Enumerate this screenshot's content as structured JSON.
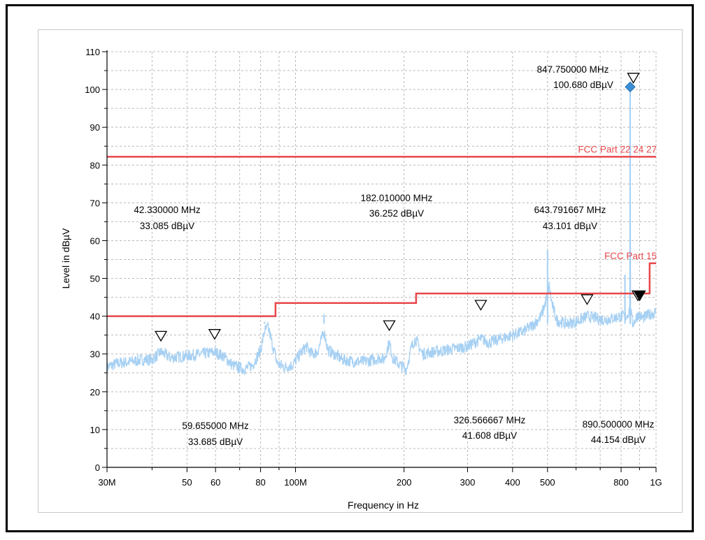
{
  "chart_data": {
    "type": "line",
    "xlabel": "Frequency in Hz",
    "ylabel": "Level in dBµV",
    "x_scale": "log",
    "xlim_hz": [
      30000000,
      1000000000
    ],
    "ylim": [
      0,
      110
    ],
    "grid": true,
    "y_ticks": [
      0,
      10,
      20,
      30,
      40,
      50,
      60,
      70,
      80,
      90,
      100,
      110
    ],
    "y_tick_labels": [
      "0",
      "10",
      "20",
      "30",
      "40",
      "50",
      "60",
      "70",
      "80",
      "90",
      "100",
      "110"
    ],
    "x_ticks": [
      {
        "hz": 30000000,
        "label": "30M"
      },
      {
        "hz": 50000000,
        "label": "50"
      },
      {
        "hz": 60000000,
        "label": "60"
      },
      {
        "hz": 80000000,
        "label": "80"
      },
      {
        "hz": 100000000,
        "label": "100M"
      },
      {
        "hz": 200000000,
        "label": "200"
      },
      {
        "hz": 300000000,
        "label": "300"
      },
      {
        "hz": 400000000,
        "label": "400"
      },
      {
        "hz": 500000000,
        "label": "500"
      },
      {
        "hz": 800000000,
        "label": "800"
      },
      {
        "hz": 1000000000,
        "label": "1G"
      }
    ],
    "x_minor_ticks_hz": [
      40000000,
      70000000,
      90000000,
      600000000,
      700000000,
      900000000
    ],
    "spectrum": {
      "color": "#a6d0f3",
      "points": [
        [
          30000000,
          26.5
        ],
        [
          32000000,
          27.5
        ],
        [
          35000000,
          28
        ],
        [
          38000000,
          28.5
        ],
        [
          40000000,
          28.5
        ],
        [
          42330000,
          30.5
        ],
        [
          45000000,
          29
        ],
        [
          50000000,
          29.5
        ],
        [
          55000000,
          30
        ],
        [
          59655000,
          30.5
        ],
        [
          63000000,
          29.5
        ],
        [
          67000000,
          27
        ],
        [
          72000000,
          26
        ],
        [
          76000000,
          27
        ],
        [
          80000000,
          31
        ],
        [
          82000000,
          36
        ],
        [
          84000000,
          37
        ],
        [
          86000000,
          33
        ],
        [
          89000000,
          27.5
        ],
        [
          93000000,
          26.5
        ],
        [
          98000000,
          27
        ],
        [
          103000000,
          30
        ],
        [
          107000000,
          32
        ],
        [
          111000000,
          30
        ],
        [
          115000000,
          30.5
        ],
        [
          120000000,
          36
        ],
        [
          123000000,
          31
        ],
        [
          128000000,
          30
        ],
        [
          135000000,
          28.5
        ],
        [
          145000000,
          28
        ],
        [
          155000000,
          28
        ],
        [
          165000000,
          28.5
        ],
        [
          172000000,
          29
        ],
        [
          176000000,
          28.5
        ],
        [
          182010000,
          33
        ],
        [
          186000000,
          29
        ],
        [
          195000000,
          27
        ],
        [
          203000000,
          26
        ],
        [
          210000000,
          32
        ],
        [
          215000000,
          34
        ],
        [
          225000000,
          30
        ],
        [
          240000000,
          30.5
        ],
        [
          260000000,
          31
        ],
        [
          280000000,
          31.5
        ],
        [
          300000000,
          32
        ],
        [
          326566667,
          34
        ],
        [
          345000000,
          33
        ],
        [
          370000000,
          34
        ],
        [
          400000000,
          35
        ],
        [
          430000000,
          36
        ],
        [
          460000000,
          38
        ],
        [
          480000000,
          40
        ],
        [
          495000000,
          44
        ],
        [
          505000000,
          48
        ],
        [
          515000000,
          43
        ],
        [
          530000000,
          39
        ],
        [
          560000000,
          38
        ],
        [
          600000000,
          38.5
        ],
        [
          643791667,
          40
        ],
        [
          680000000,
          39.5
        ],
        [
          720000000,
          39
        ],
        [
          760000000,
          39.5
        ],
        [
          800000000,
          40
        ],
        [
          830000000,
          40
        ],
        [
          845000000,
          42
        ],
        [
          847750000,
          100.68
        ],
        [
          850000000,
          42
        ],
        [
          860000000,
          38
        ],
        [
          875000000,
          39
        ],
        [
          890500000,
          40.5
        ],
        [
          920000000,
          39.5
        ],
        [
          960000000,
          40.5
        ],
        [
          1000000000,
          41
        ]
      ],
      "spikes": [
        [
          847750000,
          100.68
        ],
        [
          847750000,
          100.68
        ],
        [
          820000000,
          51
        ],
        [
          500000000,
          57.5
        ],
        [
          120000000,
          40.5
        ],
        [
          210000000,
          38
        ],
        [
          82000000,
          38.5
        ]
      ]
    },
    "limit_lines": [
      {
        "name": "FCC Part 22 24 27",
        "color": "#e8474b",
        "points": [
          [
            30000000,
            82.2
          ],
          [
            1000000000,
            82.2
          ]
        ]
      },
      {
        "name": "FCC Part 15",
        "color": "#e8474b",
        "points": [
          [
            30000000,
            40
          ],
          [
            88000000,
            40
          ],
          [
            88000000,
            43.5
          ],
          [
            216000000,
            43.5
          ],
          [
            216000000,
            46
          ],
          [
            960000000,
            46
          ],
          [
            960000000,
            54
          ],
          [
            1000000000,
            54
          ]
        ]
      }
    ],
    "markers": [
      {
        "freq_hz": 42330000,
        "level": 34.5,
        "filled": false
      },
      {
        "freq_hz": 59655000,
        "level": 35.0,
        "filled": false
      },
      {
        "freq_hz": 182010000,
        "level": 37.3,
        "filled": false
      },
      {
        "freq_hz": 326566667,
        "level": 42.7,
        "filled": false
      },
      {
        "freq_hz": 643791667,
        "level": 44.2,
        "filled": false
      },
      {
        "freq_hz": 890500000,
        "level": 45.2,
        "filled": false
      },
      {
        "freq_hz": 900500000,
        "level": 45.2,
        "filled": true
      },
      {
        "freq_hz": 865000000,
        "level": 102.8,
        "filled": false
      }
    ],
    "peak_point": {
      "freq_hz": 847750000,
      "level": 100.68
    },
    "annotations": [
      {
        "freq": "42.330000 MHz",
        "level": "33.085 dBµV"
      },
      {
        "freq": "182.010000 MHz",
        "level": "36.252 dBµV"
      },
      {
        "freq": "643.791667 MHz",
        "level": "43.101 dBµV"
      },
      {
        "freq": "847.750000 MHz",
        "level": "100.680 dBµV"
      },
      {
        "freq": "59.655000 MHz",
        "level": "33.685 dBµV"
      },
      {
        "freq": "326.566667 MHz",
        "level": "41.608 dBµV"
      },
      {
        "freq": "890.500000 MHz",
        "level": "44.154 dBµV"
      }
    ]
  }
}
